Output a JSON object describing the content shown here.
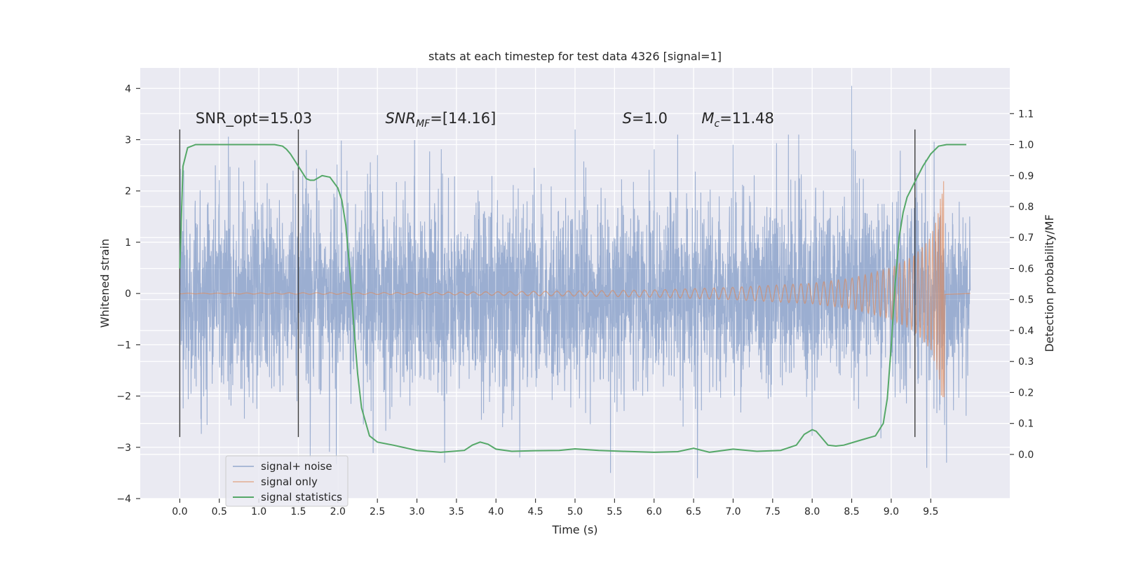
{
  "chart_data": {
    "type": "line",
    "title": "stats at each timestep for test data 4326 [signal=1]",
    "xlabel": "Time (s)",
    "ylabel": "Whitened strain",
    "y2label": "Detection probability/MF",
    "xlim": [
      -0.5,
      10.5
    ],
    "ylim": [
      -4,
      4.4
    ],
    "y2lim": [
      -0.1425,
      1.2475
    ],
    "x_ticks": [
      0.0,
      0.5,
      1.0,
      1.5,
      2.0,
      2.5,
      3.0,
      3.5,
      4.0,
      4.5,
      5.0,
      5.5,
      6.0,
      6.5,
      7.0,
      7.5,
      8.0,
      8.5,
      9.0,
      9.5
    ],
    "x_tick_labels": [
      "0.0",
      "0.5",
      "1.0",
      "1.5",
      "2.0",
      "2.5",
      "3.0",
      "3.5",
      "4.0",
      "4.5",
      "5.0",
      "5.5",
      "6.0",
      "6.5",
      "7.0",
      "7.5",
      "8.0",
      "8.5",
      "9.0",
      "9.5"
    ],
    "y_ticks": [
      -4,
      -3,
      -2,
      -1,
      0,
      1,
      2,
      3,
      4
    ],
    "y_tick_labels": [
      "−4",
      "−3",
      "−2",
      "−1",
      "0",
      "1",
      "2",
      "3",
      "4"
    ],
    "y2_ticks": [
      0.0,
      0.1,
      0.2,
      0.3,
      0.4,
      0.5,
      0.6,
      0.7,
      0.8,
      0.9,
      1.0,
      1.1
    ],
    "y2_tick_labels": [
      "0.0",
      "0.1",
      "0.2",
      "0.3",
      "0.4",
      "0.5",
      "0.6",
      "0.7",
      "0.8",
      "0.9",
      "1.0",
      "1.1"
    ],
    "grid": true,
    "legend_position": "lower-left",
    "series": [
      {
        "name": "signal+ noise",
        "color": "#4c72b0",
        "axis": "left",
        "t_range": [
          0.0,
          10.0
        ],
        "typical_amplitude": 1.0,
        "peak_values": [
          {
            "x": 0.05,
            "y": 2.4
          },
          {
            "x": 0.45,
            "y": 2.5
          },
          {
            "x": 0.95,
            "y": 2.6
          },
          {
            "x": 1.6,
            "y": 2.8
          },
          {
            "x": 1.65,
            "y": -3.2
          },
          {
            "x": 2.5,
            "y": 2.7
          },
          {
            "x": 3.35,
            "y": -3.3
          },
          {
            "x": 4.3,
            "y": -3.2
          },
          {
            "x": 5.0,
            "y": 3.2
          },
          {
            "x": 5.45,
            "y": -3.5
          },
          {
            "x": 6.3,
            "y": 3.1
          },
          {
            "x": 6.55,
            "y": -3.6
          },
          {
            "x": 7.0,
            "y": 2.9
          },
          {
            "x": 7.7,
            "y": 3.1
          },
          {
            "x": 8.5,
            "y": 4.05
          },
          {
            "x": 9.45,
            "y": -3.4
          },
          {
            "x": 9.7,
            "y": -3.3
          }
        ]
      },
      {
        "name": "signal only",
        "color": "#dd8452",
        "axis": "left",
        "t_range": [
          0.0,
          10.0
        ],
        "merger_time": 9.67,
        "peak_amplitude": 2.4,
        "envelope": [
          [
            0.0,
            0.005
          ],
          [
            3.0,
            0.02
          ],
          [
            5.0,
            0.05
          ],
          [
            6.0,
            0.07
          ],
          [
            7.0,
            0.12
          ],
          [
            8.0,
            0.2
          ],
          [
            8.5,
            0.3
          ],
          [
            9.0,
            0.5
          ],
          [
            9.3,
            0.75
          ],
          [
            9.5,
            1.1
          ],
          [
            9.6,
            1.6
          ],
          [
            9.67,
            2.4
          ],
          [
            9.68,
            0.02
          ],
          [
            10.0,
            0.0
          ]
        ]
      },
      {
        "name": "signal statistics",
        "color": "#55a868",
        "axis": "right",
        "x": [
          0.0,
          0.04,
          0.1,
          0.2,
          0.3,
          0.5,
          0.8,
          1.0,
          1.2,
          1.3,
          1.35,
          1.4,
          1.5,
          1.55,
          1.6,
          1.65,
          1.7,
          1.8,
          1.9,
          2.0,
          2.05,
          2.1,
          2.15,
          2.2,
          2.25,
          2.3,
          2.4,
          2.5,
          2.7,
          3.0,
          3.3,
          3.6,
          3.7,
          3.8,
          3.9,
          4.0,
          4.2,
          4.5,
          4.8,
          5.0,
          5.3,
          5.6,
          6.0,
          6.3,
          6.5,
          6.7,
          7.0,
          7.3,
          7.6,
          7.8,
          7.9,
          8.0,
          8.05,
          8.1,
          8.2,
          8.3,
          8.4,
          8.6,
          8.8,
          8.9,
          8.95,
          9.0,
          9.05,
          9.1,
          9.15,
          9.2,
          9.3,
          9.4,
          9.5,
          9.6,
          9.7,
          9.8,
          9.9,
          9.95
        ],
        "y": [
          0.6,
          0.93,
          0.99,
          1.0,
          1.0,
          1.0,
          1.0,
          1.0,
          1.0,
          0.995,
          0.985,
          0.97,
          0.93,
          0.91,
          0.89,
          0.885,
          0.885,
          0.9,
          0.895,
          0.86,
          0.82,
          0.74,
          0.6,
          0.42,
          0.26,
          0.15,
          0.06,
          0.04,
          0.03,
          0.013,
          0.007,
          0.013,
          0.03,
          0.04,
          0.033,
          0.017,
          0.01,
          0.012,
          0.013,
          0.018,
          0.013,
          0.01,
          0.007,
          0.009,
          0.02,
          0.007,
          0.017,
          0.01,
          0.013,
          0.03,
          0.065,
          0.08,
          0.075,
          0.06,
          0.03,
          0.027,
          0.03,
          0.045,
          0.06,
          0.1,
          0.18,
          0.35,
          0.55,
          0.7,
          0.78,
          0.83,
          0.88,
          0.93,
          0.97,
          0.995,
          1.0,
          1.0,
          1.0,
          1.0
        ]
      }
    ],
    "vertical_lines": [
      {
        "x": 0.0,
        "y_range": [
          -2.8,
          3.2
        ]
      },
      {
        "x": 1.5,
        "y_range": [
          -2.8,
          3.2
        ]
      },
      {
        "x": 9.3,
        "y_range": [
          -2.8,
          3.2
        ]
      }
    ],
    "annotations": [
      {
        "x": 0.2,
        "y": 3.32,
        "parts": [
          {
            "t": "SNR_opt=15.03",
            "style": "normal"
          }
        ]
      },
      {
        "x": 2.6,
        "y": 3.32,
        "parts": [
          {
            "t": "SNR",
            "style": "italic"
          },
          {
            "t": "MF",
            "style": "italic-sub"
          },
          {
            "t": "=[14.16]",
            "style": "normal"
          }
        ]
      },
      {
        "x": 5.6,
        "y": 3.32,
        "parts": [
          {
            "t": "S",
            "style": "italic"
          },
          {
            "t": "=1.0",
            "style": "normal"
          }
        ]
      },
      {
        "x": 6.6,
        "y": 3.32,
        "parts": [
          {
            "t": "M",
            "style": "italic"
          },
          {
            "t": "c",
            "style": "italic-sub"
          },
          {
            "t": "=11.48",
            "style": "normal"
          }
        ]
      }
    ]
  }
}
